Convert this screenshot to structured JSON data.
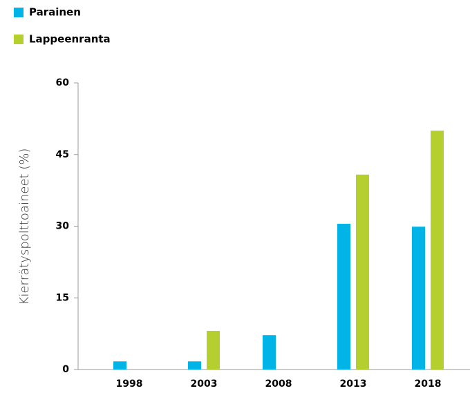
{
  "chart_data": {
    "type": "bar",
    "y_label": "Kierrätyspolttoaineet (%)",
    "categories": [
      "1998",
      "2003",
      "2008",
      "2013",
      "2018"
    ],
    "series": [
      {
        "name": "Parainen",
        "color": "#00b4e8",
        "values": [
          1.7,
          1.7,
          7.2,
          30.5,
          29.9
        ]
      },
      {
        "name": "Lappeenranta",
        "color": "#b5cf2f",
        "values": [
          null,
          8.1,
          null,
          40.8,
          50.0
        ]
      }
    ],
    "ylim": [
      0,
      60
    ],
    "yticks": [
      0,
      15,
      30,
      45,
      60
    ]
  }
}
